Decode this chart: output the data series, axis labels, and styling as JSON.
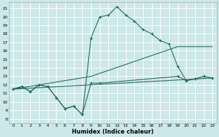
{
  "xlabel": "Humidex (Indice chaleur)",
  "bg_color": "#cce8e8",
  "grid_color": "#ffffff",
  "line_color": "#1a6b5a",
  "xlim": [
    -0.5,
    23.5
  ],
  "ylim": [
    7.5,
    21.7
  ],
  "xticks": [
    0,
    1,
    2,
    3,
    4,
    5,
    6,
    7,
    8,
    9,
    10,
    11,
    12,
    13,
    14,
    15,
    16,
    17,
    18,
    19,
    20,
    21,
    22,
    23
  ],
  "yticks": [
    8,
    9,
    10,
    11,
    12,
    13,
    14,
    15,
    16,
    17,
    18,
    19,
    20,
    21
  ],
  "series": [
    {
      "x": [
        0,
        1,
        2,
        3,
        4,
        5,
        6,
        7,
        8,
        9,
        10,
        19,
        20,
        21,
        22,
        23
      ],
      "y": [
        11.5,
        11.8,
        11.2,
        12.0,
        11.8,
        10.5,
        9.2,
        9.5,
        8.5,
        12.2,
        12.2,
        13.0,
        12.5,
        12.7,
        13.0,
        12.8
      ],
      "marker": true,
      "markersize": 2.5
    },
    {
      "x": [
        0,
        1,
        2,
        3,
        4,
        5,
        6,
        7,
        8,
        9,
        10,
        11,
        12,
        13,
        14,
        15,
        16,
        17,
        18,
        19,
        20,
        21,
        22,
        23
      ],
      "y": [
        11.5,
        11.8,
        11.2,
        12.0,
        11.8,
        10.5,
        9.2,
        9.5,
        8.5,
        17.5,
        20.0,
        20.2,
        21.2,
        20.2,
        19.5,
        18.5,
        18.0,
        17.2,
        16.8,
        14.2,
        12.5,
        12.7,
        13.0,
        12.8
      ],
      "marker": true,
      "markersize": 2.5
    },
    {
      "x": [
        0,
        23
      ],
      "y": [
        11.5,
        12.8
      ],
      "marker": false,
      "markersize": 0
    },
    {
      "x": [
        0,
        9,
        19,
        23
      ],
      "y": [
        11.5,
        13.0,
        16.5,
        16.5
      ],
      "marker": false,
      "markersize": 0
    }
  ]
}
